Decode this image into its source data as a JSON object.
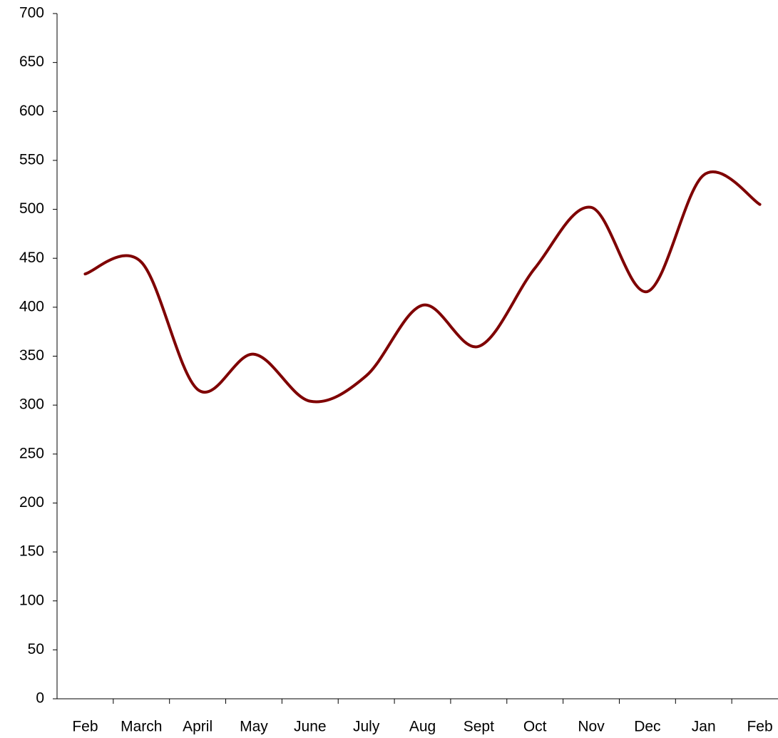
{
  "chart_data": {
    "type": "line",
    "categories": [
      "Feb",
      "March",
      "April",
      "May",
      "June",
      "July",
      "Aug",
      "Sept",
      "Oct",
      "Nov",
      "Dec",
      "Jan",
      "Feb"
    ],
    "series": [
      {
        "color": "#7f0000",
        "values": [
          434,
          446,
          316,
          352,
          304,
          330,
          402,
          360,
          440,
          502,
          416,
          535,
          505
        ]
      }
    ],
    "ylim": [
      0,
      700
    ],
    "yticks": [
      0,
      50,
      100,
      150,
      200,
      250,
      300,
      350,
      400,
      450,
      500,
      550,
      600,
      650,
      700
    ]
  }
}
